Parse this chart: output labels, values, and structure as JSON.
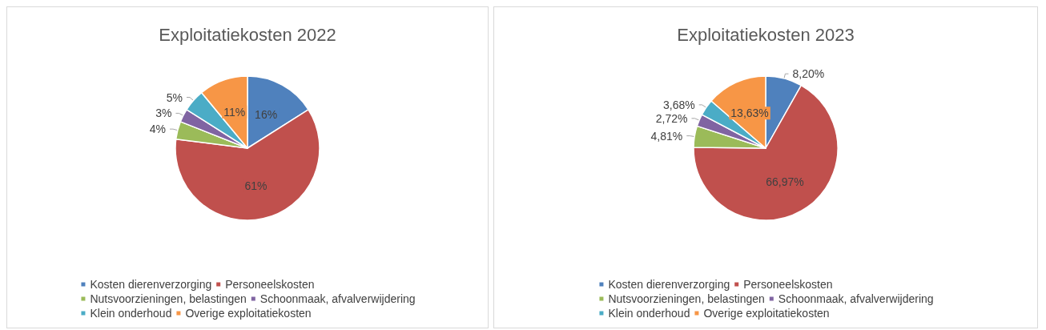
{
  "chart_data": [
    {
      "type": "pie",
      "title": "Exploitatiekosten 2022",
      "categories": [
        "Kosten dierenverzorging",
        "Personeelskosten",
        "Nutsvoorzieningen, belastingen",
        "Schoonmaak, afvalverwijdering",
        "Klein onderhoud",
        "Overige exploitatiekosten"
      ],
      "values": [
        16,
        61,
        4,
        3,
        5,
        11
      ],
      "value_labels": [
        "16%",
        "61%",
        "4%",
        "3%",
        "5%",
        "11%"
      ],
      "colors": [
        "#4f81bd",
        "#c0504d",
        "#9bbb59",
        "#8064a2",
        "#4bacc6",
        "#f79646"
      ],
      "legend": "bottom"
    },
    {
      "type": "pie",
      "title": "Exploitatiekosten 2023",
      "categories": [
        "Kosten dierenverzorging",
        "Personeelskosten",
        "Nutsvoorzieningen, belastingen",
        "Schoonmaak, afvalverwijdering",
        "Klein onderhoud",
        "Overige exploitatiekosten"
      ],
      "values": [
        8.2,
        66.97,
        4.81,
        2.72,
        3.68,
        13.63
      ],
      "value_labels": [
        "8,20%",
        "66,97%",
        "4,81%",
        "2,72%",
        "3,68%",
        "13,63%"
      ],
      "colors": [
        "#4f81bd",
        "#c0504d",
        "#9bbb59",
        "#8064a2",
        "#4bacc6",
        "#f79646"
      ],
      "legend": "bottom"
    }
  ]
}
